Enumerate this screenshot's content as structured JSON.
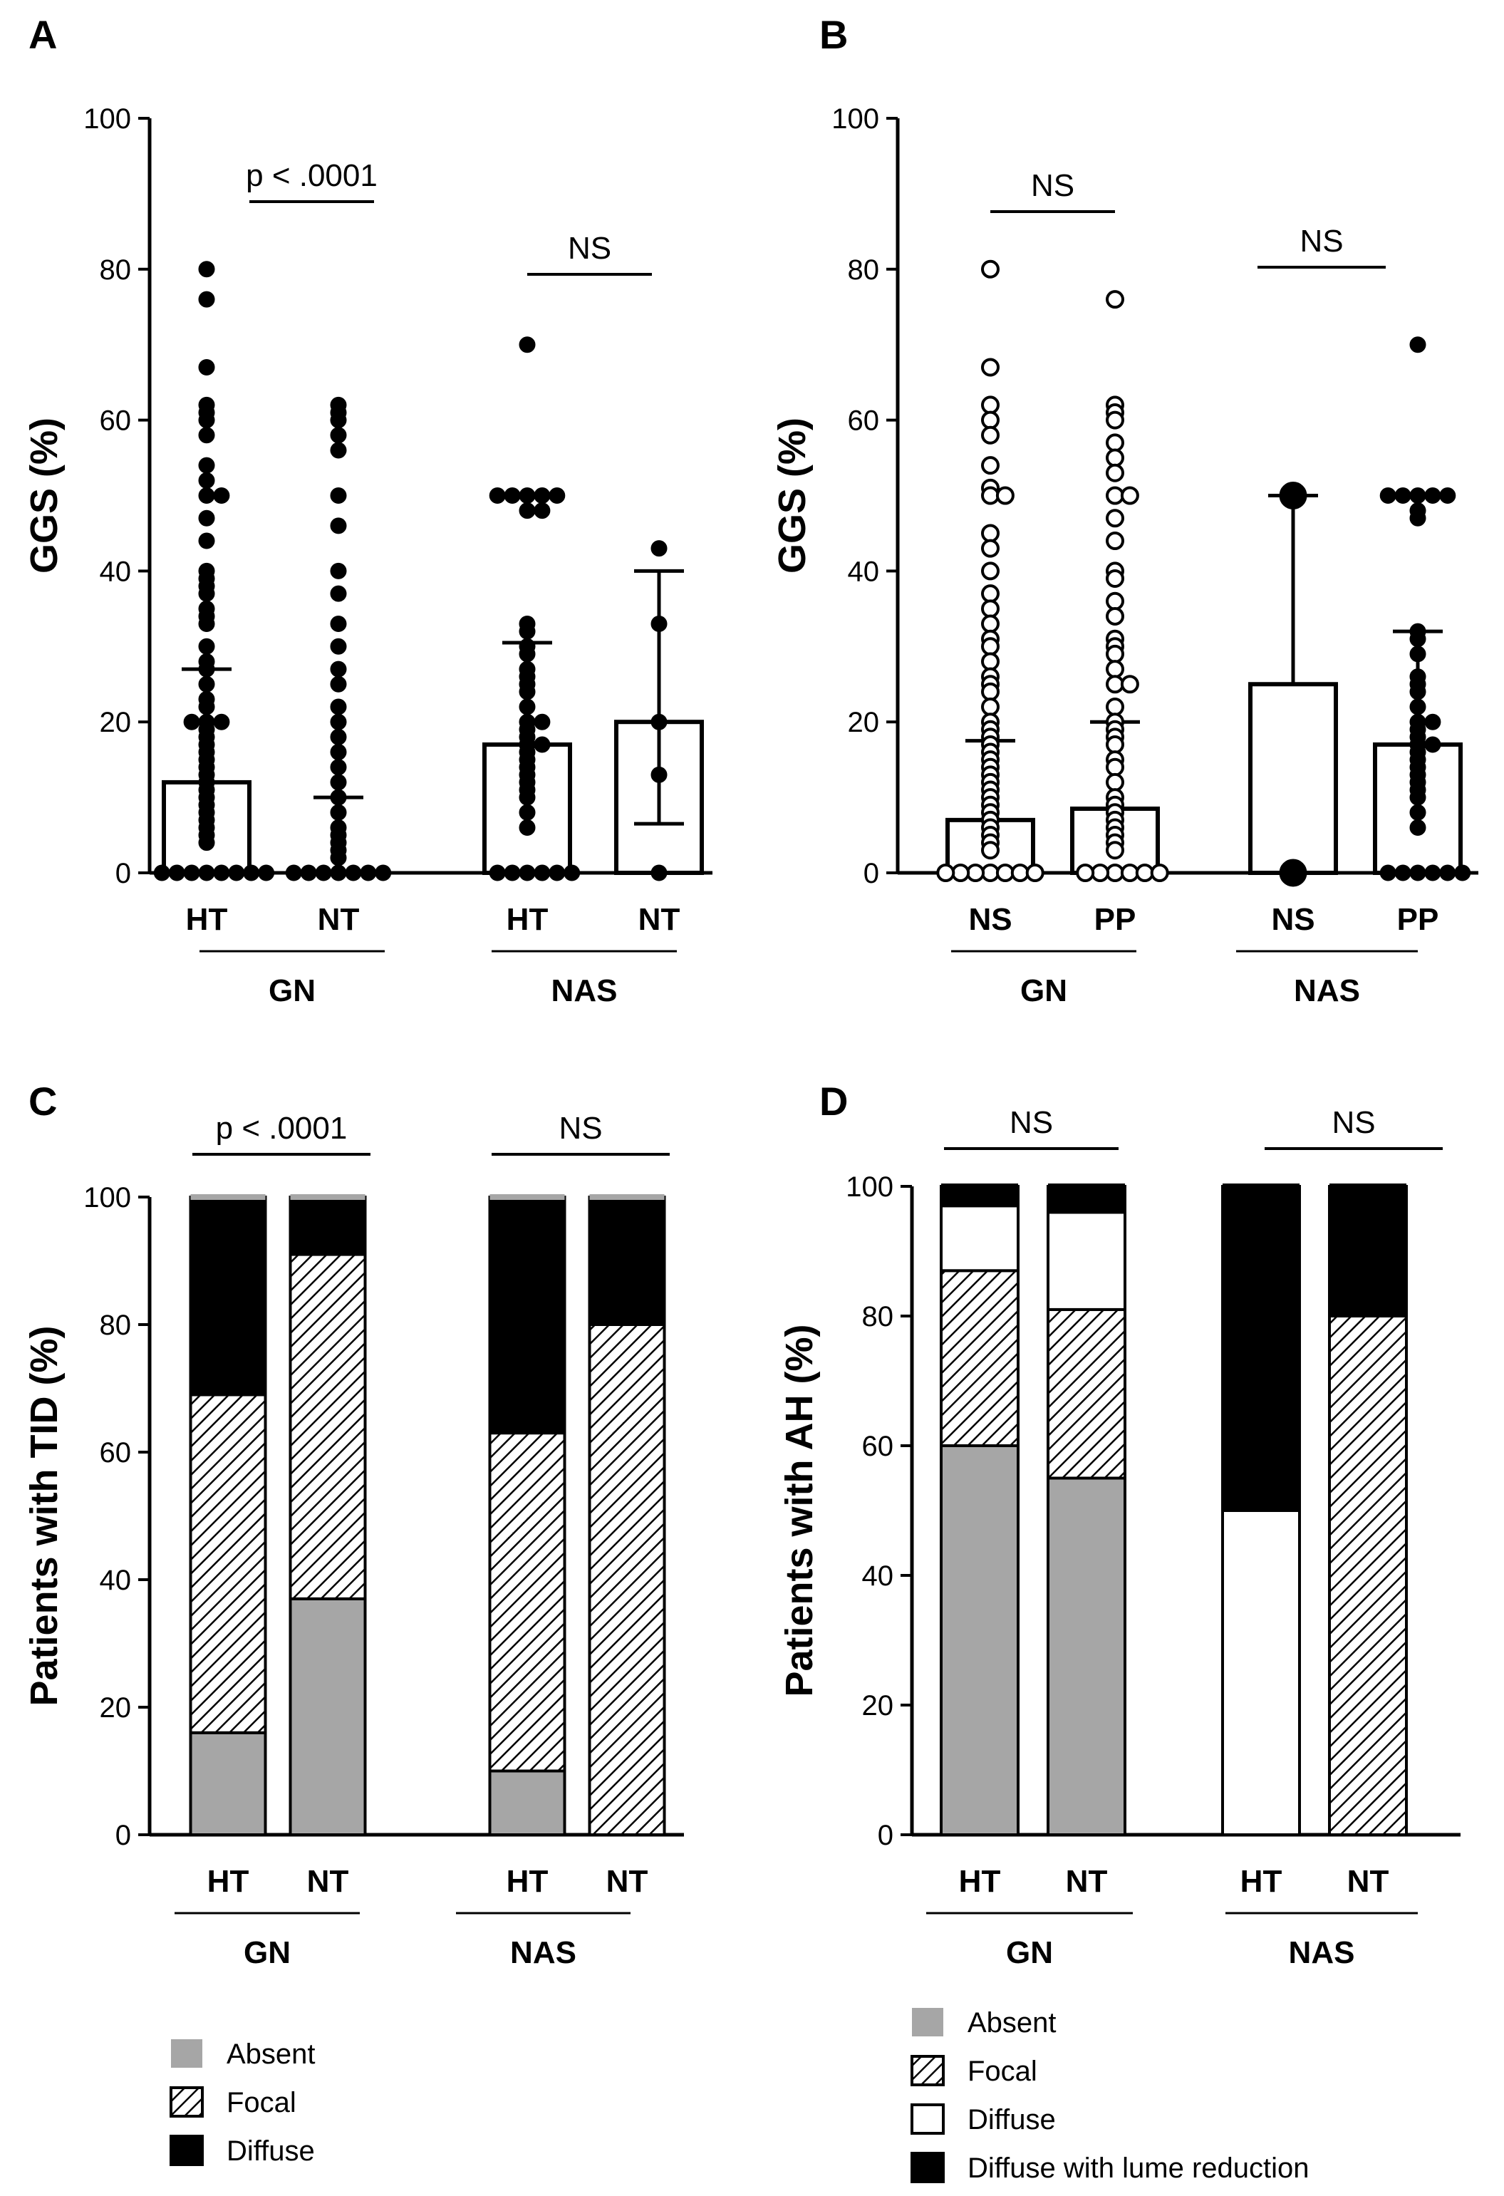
{
  "chart_data": [
    {
      "panel": "A",
      "type": "scatter",
      "ylabel": "GGS (%)",
      "ylim": [
        0,
        100
      ],
      "yticks": [
        0,
        20,
        40,
        60,
        80,
        100
      ],
      "categories": [
        "HT",
        "NT",
        "HT",
        "NT"
      ],
      "group_labels": [
        "GN",
        "NAS"
      ],
      "groups": [
        {
          "label": "GN",
          "category": "HT",
          "mean": 12,
          "sd_upper": 27,
          "marker": "filled",
          "points": [
            80,
            76,
            67,
            62,
            61,
            60,
            58,
            54,
            52,
            50,
            50,
            47,
            44,
            40,
            39,
            38,
            37,
            35,
            34,
            33,
            30,
            28,
            27,
            25,
            23,
            22,
            20,
            20,
            20,
            19,
            18,
            17,
            16,
            15,
            14,
            13,
            12,
            11,
            10,
            9,
            8,
            7,
            6,
            5,
            4,
            0,
            0,
            0,
            0,
            0,
            0,
            0,
            0
          ]
        },
        {
          "label": "GN",
          "category": "NT",
          "mean": 0,
          "sd_upper": 10,
          "marker": "filled",
          "points": [
            62,
            61,
            60,
            58,
            56,
            50,
            46,
            40,
            37,
            33,
            30,
            27,
            25,
            22,
            20,
            18,
            16,
            14,
            12,
            10,
            8,
            6,
            5,
            4,
            3,
            2,
            0,
            0,
            0,
            0,
            0,
            0,
            0
          ]
        },
        {
          "label": "NAS",
          "category": "HT",
          "mean": 17,
          "sd_upper": 30.5,
          "marker": "filled",
          "points": [
            70,
            50,
            50,
            50,
            50,
            50,
            48,
            48,
            33,
            32,
            30,
            29,
            27,
            26,
            25,
            24,
            22,
            20,
            20,
            19,
            18,
            17,
            17,
            16,
            15,
            14,
            13,
            12,
            11,
            10,
            8,
            6,
            0,
            0,
            0,
            0,
            0,
            0
          ]
        },
        {
          "label": "NAS",
          "category": "NT",
          "mean": 20,
          "sd_lower": 6.5,
          "sd_upper": 40,
          "marker": "filled",
          "points": [
            43,
            33,
            20,
            13,
            0
          ]
        }
      ],
      "comparisons": [
        {
          "label": "p < .0001",
          "between": [
            "GN HT",
            "GN NT"
          ]
        },
        {
          "label": "NS",
          "between": [
            "NAS HT",
            "NAS NT"
          ]
        }
      ]
    },
    {
      "panel": "B",
      "type": "scatter",
      "ylabel": "GGS (%)",
      "ylim": [
        0,
        100
      ],
      "yticks": [
        0,
        20,
        40,
        60,
        80,
        100
      ],
      "categories": [
        "NS",
        "PP",
        "NS",
        "PP"
      ],
      "group_labels": [
        "GN",
        "NAS"
      ],
      "groups": [
        {
          "label": "GN",
          "category": "NS",
          "mean": 7,
          "sd_upper": 17.5,
          "marker": "open",
          "points": [
            80,
            67,
            62,
            60,
            58,
            54,
            51,
            50,
            50,
            45,
            43,
            40,
            37,
            35,
            33,
            31,
            30,
            28,
            26,
            25,
            24,
            22,
            20,
            19,
            18,
            17,
            16,
            15,
            14,
            13,
            12,
            11,
            10,
            9,
            8,
            7,
            6,
            5,
            4,
            3,
            0,
            0,
            0,
            0,
            0,
            0,
            0
          ]
        },
        {
          "label": "GN",
          "category": "PP",
          "mean": 8.5,
          "sd_upper": 20,
          "marker": "open",
          "points": [
            76,
            62,
            61,
            60,
            57,
            55,
            53,
            50,
            50,
            47,
            44,
            40,
            39,
            36,
            34,
            31,
            30,
            29,
            27,
            25,
            25,
            22,
            20,
            19,
            18,
            17,
            15,
            14,
            12,
            10,
            9,
            8,
            7,
            6,
            5,
            4,
            3,
            0,
            0,
            0,
            0,
            0,
            0
          ]
        },
        {
          "label": "NAS",
          "category": "NS",
          "mean": 25,
          "sd_upper": 50,
          "marker": "filled",
          "points": [
            50,
            0
          ]
        },
        {
          "label": "NAS",
          "category": "PP",
          "mean": 17,
          "sd_upper": 32,
          "marker": "filled",
          "points": [
            70,
            50,
            50,
            50,
            50,
            50,
            48,
            47,
            32,
            31,
            29,
            26,
            25,
            24,
            22,
            20,
            20,
            19,
            18,
            17,
            17,
            16,
            15,
            14,
            13,
            12,
            11,
            10,
            8,
            6,
            0,
            0,
            0,
            0,
            0,
            0
          ]
        }
      ],
      "comparisons": [
        {
          "label": "NS",
          "between": [
            "GN NS",
            "GN PP"
          ]
        },
        {
          "label": "NS",
          "between": [
            "NAS NS",
            "NAS PP"
          ]
        }
      ]
    },
    {
      "panel": "C",
      "type": "bar",
      "stacked": true,
      "ylabel": "Patients with TID (%)",
      "ylim": [
        0,
        100
      ],
      "yticks": [
        0,
        20,
        40,
        60,
        80,
        100
      ],
      "categories": [
        "HT",
        "NT",
        "HT",
        "NT"
      ],
      "group_labels": [
        "GN",
        "NAS"
      ],
      "series": [
        {
          "name": "Absent",
          "fill": "gray",
          "values": [
            16,
            37,
            10,
            0
          ]
        },
        {
          "name": "Focal",
          "fill": "hatch",
          "values": [
            53,
            54,
            53,
            80
          ]
        },
        {
          "name": "Diffuse",
          "fill": "black",
          "values": [
            31,
            9,
            37,
            20
          ]
        }
      ],
      "comparisons": [
        {
          "label": "p < .0001",
          "between": [
            "GN HT",
            "GN NT"
          ]
        },
        {
          "label": "NS",
          "between": [
            "NAS HT",
            "NAS NT"
          ]
        }
      ]
    },
    {
      "panel": "D",
      "type": "bar",
      "stacked": true,
      "ylabel": "Patients with AH (%)",
      "ylim": [
        0,
        100
      ],
      "yticks": [
        0,
        20,
        40,
        60,
        80,
        100
      ],
      "categories": [
        "HT",
        "NT",
        "HT",
        "NT"
      ],
      "group_labels": [
        "GN",
        "NAS"
      ],
      "series": [
        {
          "name": "Absent",
          "fill": "gray",
          "values": [
            60,
            55,
            0,
            0
          ]
        },
        {
          "name": "Focal",
          "fill": "hatch",
          "values": [
            27,
            26,
            0,
            80
          ]
        },
        {
          "name": "Diffuse",
          "fill": "white",
          "values": [
            10,
            15,
            50,
            0
          ]
        },
        {
          "name": "Diffuse with lume reduction",
          "fill": "black",
          "values": [
            3,
            4,
            50,
            20
          ]
        }
      ],
      "comparisons": [
        {
          "label": "NS",
          "between": [
            "GN HT",
            "GN NT"
          ]
        },
        {
          "label": "NS",
          "between": [
            "NAS HT",
            "NAS NT"
          ]
        }
      ]
    }
  ],
  "colors": {
    "absent": "#a6a6a6",
    "diffuse_black": "#000000",
    "axis": "#000000",
    "bar_outline": "#000000",
    "open_fill": "#ffffff"
  }
}
